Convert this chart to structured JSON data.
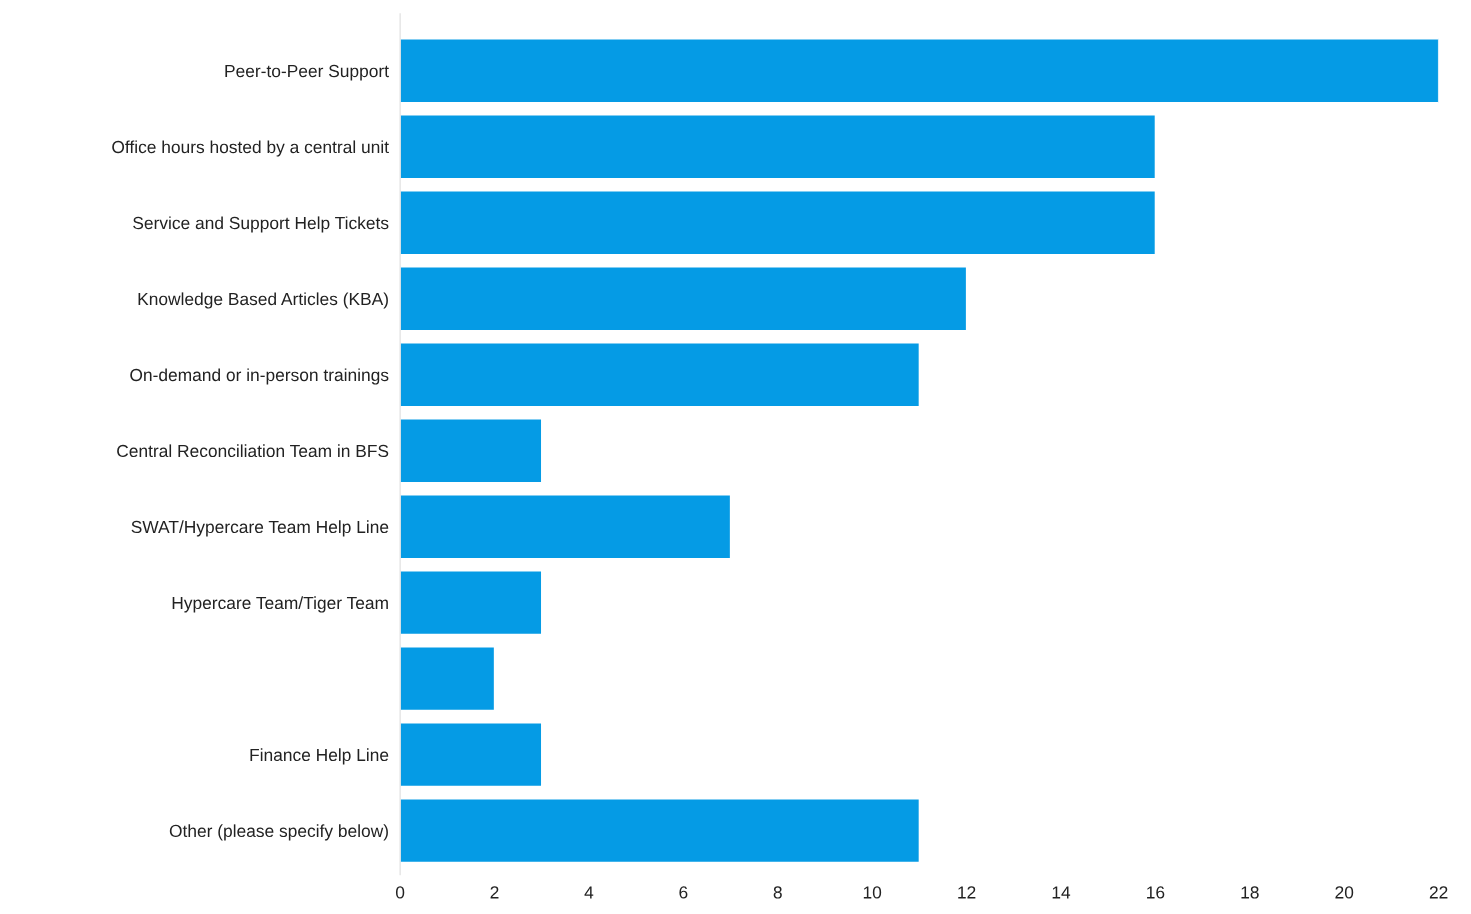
{
  "chart_data": {
    "type": "bar",
    "orientation": "horizontal",
    "categories": [
      "Peer-to-Peer Support",
      "Office hours hosted by a central unit",
      "Service and Support Help Tickets",
      "Knowledge Based Articles (KBA)",
      "On-demand or in-person trainings",
      "Central Reconciliation Team in BFS",
      "SWAT/Hypercare Team Help Line",
      "Hypercare Team/Tiger Team",
      null,
      "Finance Help Line",
      "Other (please specify below)"
    ],
    "values": [
      22,
      16,
      16,
      12,
      11,
      3,
      7,
      3,
      2,
      3,
      11
    ],
    "color": "#059be5",
    "xlim": [
      0,
      22
    ],
    "xticks": [
      0,
      2,
      4,
      6,
      8,
      10,
      12,
      14,
      16,
      18,
      20,
      22
    ],
    "grid": false,
    "legend": false
  }
}
